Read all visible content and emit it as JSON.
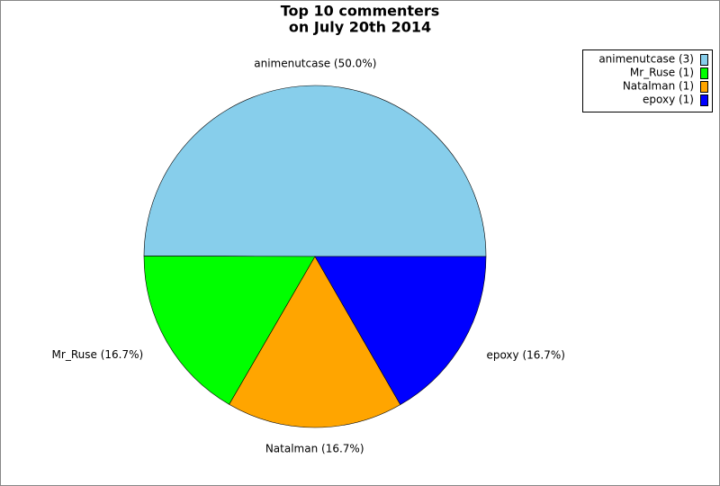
{
  "chart_data": {
    "type": "pie",
    "title": "Top 10 commenters",
    "subtitle": "on July 20th 2014",
    "categories": [
      "animenutcase",
      "Mr_Ruse",
      "Natalman",
      "epoxy"
    ],
    "values": [
      50.0,
      16.7,
      16.7,
      16.7
    ],
    "value_labels": [
      "animenutcase (50.0%)",
      "Mr_Ruse (16.7%)",
      "Natalman (16.7%)",
      "epoxy (16.7%)"
    ],
    "legend_labels": [
      "animenutcase (3)",
      "Mr_Ruse (1)",
      "Natalman (1)",
      "epoxy (1)"
    ],
    "colors": [
      "#87ceeb",
      "#00ff00",
      "#ffa500",
      "#0000ff"
    ],
    "legend": "upper right"
  }
}
